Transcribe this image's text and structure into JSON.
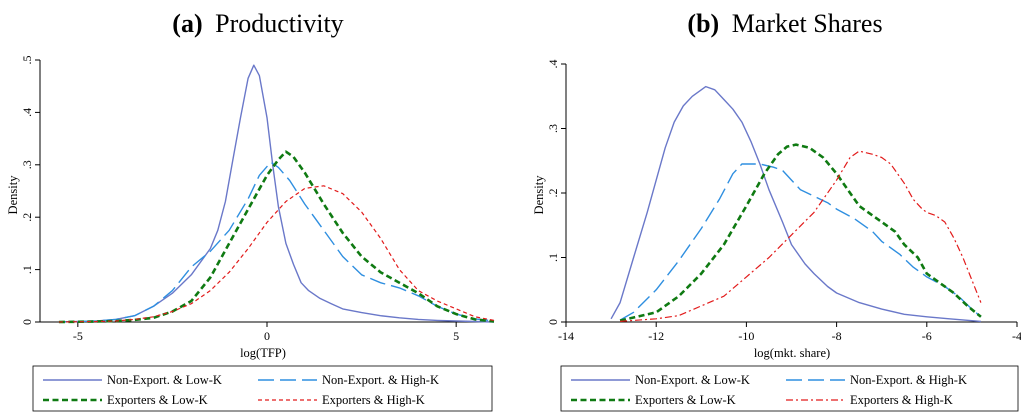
{
  "colors": {
    "nonexp_low": "#6a78c9",
    "nonexp_high": "#2f8fe0",
    "exp_low": "#0f7a12",
    "exp_high": "#e21b1b",
    "axis": "#000000"
  },
  "chart_data": [
    {
      "type": "line",
      "letter": "(a)",
      "title": "Productivity",
      "xlabel": "log(TFP)",
      "ylabel": "Density",
      "xlim": [
        -6,
        6
      ],
      "ylim": [
        0,
        0.5
      ],
      "xticks": [
        {
          "v": -5,
          "label": "-5"
        },
        {
          "v": 0,
          "label": "0"
        },
        {
          "v": 5,
          "label": "5"
        }
      ],
      "yticks": [
        {
          "v": 0,
          "label": "0"
        },
        {
          "v": 0.1,
          "label": ".1"
        },
        {
          "v": 0.2,
          "label": ".2"
        },
        {
          "v": 0.3,
          "label": ".3"
        },
        {
          "v": 0.4,
          "label": ".4"
        },
        {
          "v": 0.5,
          "label": ".5"
        }
      ],
      "legend_position": "bottom",
      "series": [
        {
          "name": "Non-Export. & Low-K",
          "color": "#6a78c9",
          "dash": "solid",
          "width": 1.4,
          "x": [
            -5.5,
            -4.5,
            -4,
            -3.5,
            -3,
            -2.5,
            -2,
            -1.5,
            -1.3,
            -1.1,
            -0.9,
            -0.7,
            -0.5,
            -0.35,
            -0.2,
            0,
            0.15,
            0.3,
            0.5,
            0.7,
            0.9,
            1.1,
            1.4,
            1.7,
            2,
            2.5,
            3,
            3.5,
            4,
            4.5,
            5,
            5.5,
            6
          ],
          "y": [
            0,
            0.002,
            0.005,
            0.012,
            0.03,
            0.055,
            0.09,
            0.14,
            0.175,
            0.23,
            0.31,
            0.39,
            0.465,
            0.49,
            0.47,
            0.39,
            0.3,
            0.22,
            0.15,
            0.11,
            0.075,
            0.06,
            0.045,
            0.035,
            0.025,
            0.018,
            0.012,
            0.008,
            0.005,
            0.003,
            0.002,
            0.001,
            0
          ]
        },
        {
          "name": "Non-Export. & High-K",
          "color": "#2f8fe0",
          "dash": "long",
          "width": 1.4,
          "x": [
            -5.5,
            -4.5,
            -4,
            -3.5,
            -3,
            -2.5,
            -2,
            -1.5,
            -1,
            -0.5,
            -0.2,
            0.1,
            0.3,
            0.6,
            1,
            1.5,
            2,
            2.5,
            3,
            3.5,
            4,
            4.5,
            5,
            5.5,
            6
          ],
          "y": [
            0,
            0.002,
            0.005,
            0.012,
            0.03,
            0.06,
            0.105,
            0.135,
            0.175,
            0.235,
            0.28,
            0.305,
            0.295,
            0.27,
            0.225,
            0.175,
            0.125,
            0.09,
            0.075,
            0.065,
            0.05,
            0.03,
            0.015,
            0.006,
            0.002
          ]
        },
        {
          "name": "Exporters & Low-K",
          "color": "#0f7a12",
          "dash": "dash",
          "width": 2.6,
          "x": [
            -5.5,
            -4.5,
            -4,
            -3.5,
            -3,
            -2.5,
            -2,
            -1.5,
            -1,
            -0.5,
            0,
            0.3,
            0.5,
            0.7,
            1,
            1.5,
            2,
            2.5,
            3,
            3.5,
            4,
            4.5,
            5,
            5.5,
            6
          ],
          "y": [
            0,
            0.001,
            0.002,
            0.004,
            0.008,
            0.02,
            0.04,
            0.085,
            0.15,
            0.215,
            0.28,
            0.31,
            0.325,
            0.315,
            0.285,
            0.225,
            0.17,
            0.125,
            0.095,
            0.075,
            0.055,
            0.03,
            0.015,
            0.005,
            0.001
          ]
        },
        {
          "name": "Exporters & High-K",
          "color": "#e21b1b",
          "dash": "short",
          "width": 1.2,
          "x": [
            -5.5,
            -4.5,
            -4,
            -3.5,
            -3,
            -2.5,
            -2,
            -1.5,
            -1,
            -0.5,
            0,
            0.5,
            1,
            1.5,
            2,
            2.5,
            3,
            3.5,
            4,
            4.5,
            5,
            5.5,
            6
          ],
          "y": [
            0,
            0.001,
            0.002,
            0.005,
            0.01,
            0.02,
            0.035,
            0.06,
            0.095,
            0.14,
            0.19,
            0.23,
            0.255,
            0.26,
            0.245,
            0.21,
            0.16,
            0.1,
            0.06,
            0.04,
            0.025,
            0.01,
            0.003
          ]
        }
      ]
    },
    {
      "type": "line",
      "letter": "(b)",
      "title": "Market Shares",
      "xlabel": "log(mkt. share)",
      "ylabel": "Density",
      "xlim": [
        -14,
        -4
      ],
      "ylim": [
        0,
        0.4
      ],
      "xticks": [
        {
          "v": -14,
          "label": "-14"
        },
        {
          "v": -12,
          "label": "-12"
        },
        {
          "v": -10,
          "label": "-10"
        },
        {
          "v": -8,
          "label": "-8"
        },
        {
          "v": -6,
          "label": "-6"
        },
        {
          "v": -4,
          "label": "-4"
        }
      ],
      "yticks": [
        {
          "v": 0,
          "label": "0"
        },
        {
          "v": 0.1,
          "label": ".1"
        },
        {
          "v": 0.2,
          "label": ".2"
        },
        {
          "v": 0.3,
          "label": ".3"
        },
        {
          "v": 0.4,
          "label": ".4"
        }
      ],
      "legend_position": "bottom",
      "series": [
        {
          "name": "Non-Export. & Low-K",
          "color": "#6a78c9",
          "dash": "solid",
          "width": 1.4,
          "x": [
            -13,
            -12.8,
            -12.5,
            -12.2,
            -12,
            -11.8,
            -11.6,
            -11.4,
            -11.2,
            -11,
            -10.9,
            -10.7,
            -10.5,
            -10.3,
            -10.1,
            -9.9,
            -9.7,
            -9.5,
            -9.2,
            -9,
            -8.7,
            -8.5,
            -8.2,
            -8,
            -7.5,
            -7,
            -6.5,
            -6,
            -5.5,
            -5,
            -4.8
          ],
          "y": [
            0.005,
            0.03,
            0.1,
            0.17,
            0.22,
            0.27,
            0.31,
            0.335,
            0.35,
            0.36,
            0.365,
            0.36,
            0.345,
            0.33,
            0.31,
            0.28,
            0.245,
            0.205,
            0.155,
            0.12,
            0.09,
            0.075,
            0.055,
            0.045,
            0.03,
            0.02,
            0.012,
            0.008,
            0.005,
            0.002,
            0.001
          ]
        },
        {
          "name": "Non-Export. & High-K",
          "color": "#2f8fe0",
          "dash": "long",
          "width": 1.4,
          "x": [
            -12.8,
            -12.5,
            -12,
            -11.5,
            -11,
            -10.6,
            -10.3,
            -10.1,
            -10,
            -9.7,
            -9.4,
            -9.2,
            -9,
            -8.8,
            -8.5,
            -8.2,
            -8,
            -7.6,
            -7.2,
            -7,
            -6.6,
            -6.3,
            -6,
            -5.6,
            -5.3,
            -5,
            -4.8
          ],
          "y": [
            0.003,
            0.015,
            0.05,
            0.095,
            0.145,
            0.19,
            0.23,
            0.245,
            0.245,
            0.245,
            0.24,
            0.235,
            0.22,
            0.205,
            0.195,
            0.185,
            0.175,
            0.16,
            0.14,
            0.125,
            0.105,
            0.085,
            0.07,
            0.055,
            0.04,
            0.02,
            0.008
          ]
        },
        {
          "name": "Exporters & Low-K",
          "color": "#0f7a12",
          "dash": "dash",
          "width": 2.6,
          "x": [
            -12.8,
            -12.5,
            -12,
            -11.5,
            -11,
            -10.5,
            -10,
            -9.6,
            -9.3,
            -9.1,
            -8.9,
            -8.6,
            -8.3,
            -8,
            -7.7,
            -7.5,
            -7.2,
            -7,
            -6.7,
            -6.5,
            -6.2,
            -6,
            -5.7,
            -5.4,
            -5.1,
            -4.8
          ],
          "y": [
            0.002,
            0.007,
            0.015,
            0.04,
            0.075,
            0.12,
            0.18,
            0.23,
            0.26,
            0.272,
            0.275,
            0.27,
            0.255,
            0.23,
            0.2,
            0.18,
            0.165,
            0.155,
            0.14,
            0.12,
            0.1,
            0.075,
            0.06,
            0.045,
            0.025,
            0.008
          ]
        },
        {
          "name": "Exporters & High-K",
          "color": "#e21b1b",
          "dash": "dashdot",
          "width": 1.2,
          "x": [
            -12.8,
            -12,
            -11.5,
            -11,
            -10.5,
            -10,
            -9.5,
            -9,
            -8.5,
            -8,
            -7.7,
            -7.5,
            -7.2,
            -7,
            -6.8,
            -6.5,
            -6.3,
            -6.1,
            -6,
            -5.8,
            -5.6,
            -5.4,
            -5.2,
            -5,
            -4.8
          ],
          "y": [
            0.001,
            0.005,
            0.01,
            0.025,
            0.04,
            0.07,
            0.1,
            0.135,
            0.17,
            0.22,
            0.255,
            0.265,
            0.26,
            0.255,
            0.245,
            0.215,
            0.19,
            0.175,
            0.17,
            0.165,
            0.155,
            0.13,
            0.1,
            0.065,
            0.03
          ]
        }
      ]
    }
  ]
}
